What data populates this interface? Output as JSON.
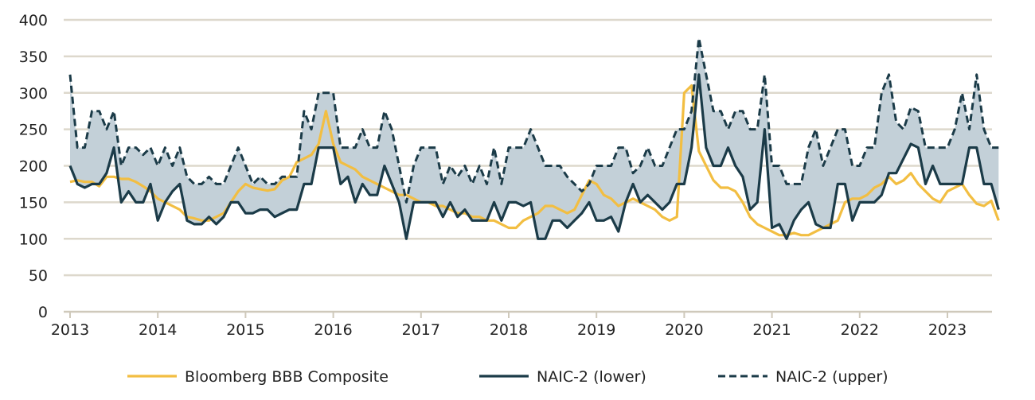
{
  "chart_data": {
    "type": "line",
    "title": "",
    "xlabel": "",
    "ylabel": "",
    "ylim": [
      0,
      400
    ],
    "yticks": [
      "0",
      "50",
      "100",
      "150",
      "200",
      "250",
      "300",
      "350",
      "400"
    ],
    "xticks": [
      "2013",
      "2014",
      "2015",
      "2016",
      "2017",
      "2018",
      "2019",
      "2020",
      "2021",
      "2022",
      "2023"
    ],
    "x_start": "2013-01",
    "x_frequency": "monthly",
    "grid": "horizontal",
    "legend_position": "bottom",
    "shaded_band": "between NAIC-2 (lower) and NAIC-2 (upper)",
    "colors": {
      "bbb": "#f2be42",
      "naic": "#1b3b48",
      "band": "#c3d0d8",
      "grid": "#ddd8cc"
    },
    "series": [
      {
        "name": "Bloomberg BBB Composite",
        "style": "solid",
        "values": [
          178,
          180,
          178,
          178,
          172,
          185,
          185,
          182,
          182,
          178,
          172,
          165,
          155,
          150,
          145,
          140,
          130,
          128,
          125,
          125,
          130,
          135,
          150,
          165,
          175,
          170,
          168,
          166,
          168,
          180,
          185,
          205,
          210,
          215,
          230,
          275,
          230,
          205,
          200,
          195,
          185,
          180,
          175,
          170,
          165,
          160,
          160,
          155,
          150,
          150,
          145,
          145,
          140,
          135,
          135,
          130,
          130,
          125,
          125,
          120,
          115,
          115,
          125,
          130,
          135,
          145,
          145,
          140,
          135,
          140,
          160,
          180,
          175,
          160,
          155,
          145,
          150,
          155,
          150,
          145,
          140,
          130,
          125,
          130,
          300,
          310,
          220,
          200,
          180,
          170,
          170,
          165,
          150,
          130,
          120,
          115,
          110,
          105,
          105,
          108,
          105,
          105,
          110,
          115,
          120,
          125,
          150,
          155,
          155,
          160,
          170,
          175,
          185,
          175,
          180,
          190,
          175,
          165,
          155,
          150,
          165,
          170,
          175,
          160,
          148,
          145,
          152,
          125
        ]
      },
      {
        "name": "NAIC-2 (lower)",
        "style": "solid",
        "values": [
          200,
          175,
          170,
          175,
          175,
          190,
          225,
          150,
          165,
          150,
          150,
          175,
          125,
          150,
          165,
          175,
          125,
          120,
          120,
          130,
          120,
          130,
          150,
          150,
          135,
          135,
          140,
          140,
          130,
          135,
          140,
          140,
          175,
          175,
          225,
          225,
          225,
          175,
          185,
          150,
          175,
          160,
          160,
          200,
          175,
          150,
          100,
          150,
          150,
          150,
          150,
          130,
          150,
          130,
          140,
          125,
          125,
          125,
          150,
          125,
          150,
          150,
          145,
          150,
          100,
          100,
          125,
          125,
          115,
          125,
          135,
          150,
          125,
          125,
          130,
          110,
          150,
          175,
          150,
          160,
          150,
          140,
          150,
          175,
          175,
          225,
          325,
          225,
          200,
          200,
          225,
          200,
          185,
          140,
          150,
          250,
          115,
          120,
          100,
          125,
          140,
          150,
          120,
          115,
          115,
          175,
          175,
          125,
          150,
          150,
          150,
          160,
          190,
          190,
          210,
          230,
          225,
          175,
          200,
          175,
          175,
          175,
          175,
          225,
          225,
          175,
          175,
          140
        ]
      },
      {
        "name": "NAIC-2 (upper)",
        "style": "dashed",
        "values": [
          325,
          225,
          225,
          275,
          275,
          250,
          275,
          200,
          225,
          225,
          215,
          225,
          200,
          225,
          200,
          225,
          185,
          175,
          175,
          185,
          175,
          175,
          200,
          225,
          200,
          175,
          185,
          175,
          175,
          185,
          185,
          185,
          275,
          250,
          300,
          300,
          300,
          225,
          225,
          225,
          250,
          225,
          225,
          275,
          250,
          200,
          150,
          200,
          225,
          225,
          225,
          175,
          200,
          185,
          200,
          175,
          200,
          175,
          225,
          175,
          225,
          225,
          225,
          250,
          225,
          200,
          200,
          200,
          185,
          175,
          165,
          175,
          200,
          200,
          200,
          225,
          225,
          190,
          200,
          225,
          200,
          200,
          225,
          250,
          250,
          275,
          375,
          325,
          275,
          275,
          250,
          275,
          275,
          250,
          250,
          325,
          200,
          200,
          175,
          175,
          175,
          225,
          250,
          200,
          225,
          250,
          250,
          200,
          200,
          225,
          225,
          300,
          325,
          260,
          250,
          280,
          275,
          225,
          225,
          225,
          225,
          250,
          300,
          250,
          325,
          250,
          225,
          225
        ]
      }
    ]
  }
}
